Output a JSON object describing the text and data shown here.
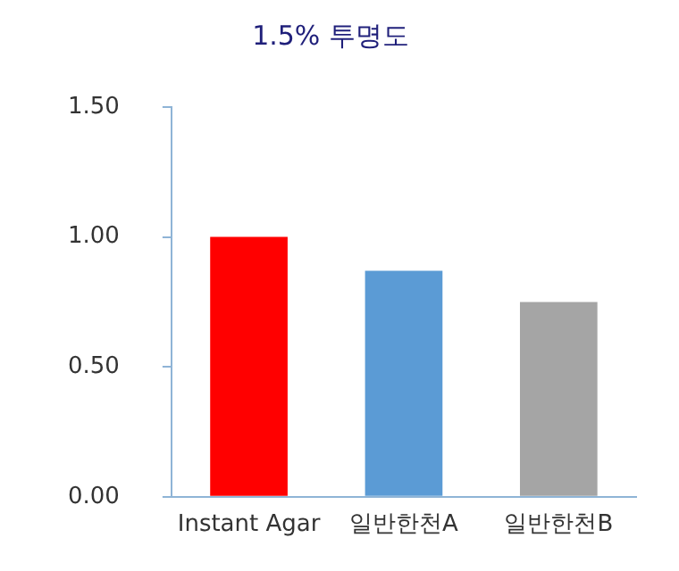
{
  "chart_data": {
    "type": "bar",
    "title": "1.5% 투명도",
    "categories": [
      "Instant Agar",
      "일반한천A",
      "일반한천B"
    ],
    "values": [
      1.0,
      0.87,
      0.75
    ],
    "colors": [
      "#ff0000",
      "#5b9bd5",
      "#a5a5a5"
    ],
    "ylim": [
      0,
      1.5
    ],
    "yticks": [
      {
        "value": 0,
        "label": "0.00"
      },
      {
        "value": 0.5,
        "label": "0.50"
      },
      {
        "value": 1,
        "label": "1.00"
      },
      {
        "value": 1.5,
        "label": "1.50"
      }
    ],
    "grid": false,
    "legend": false
  }
}
